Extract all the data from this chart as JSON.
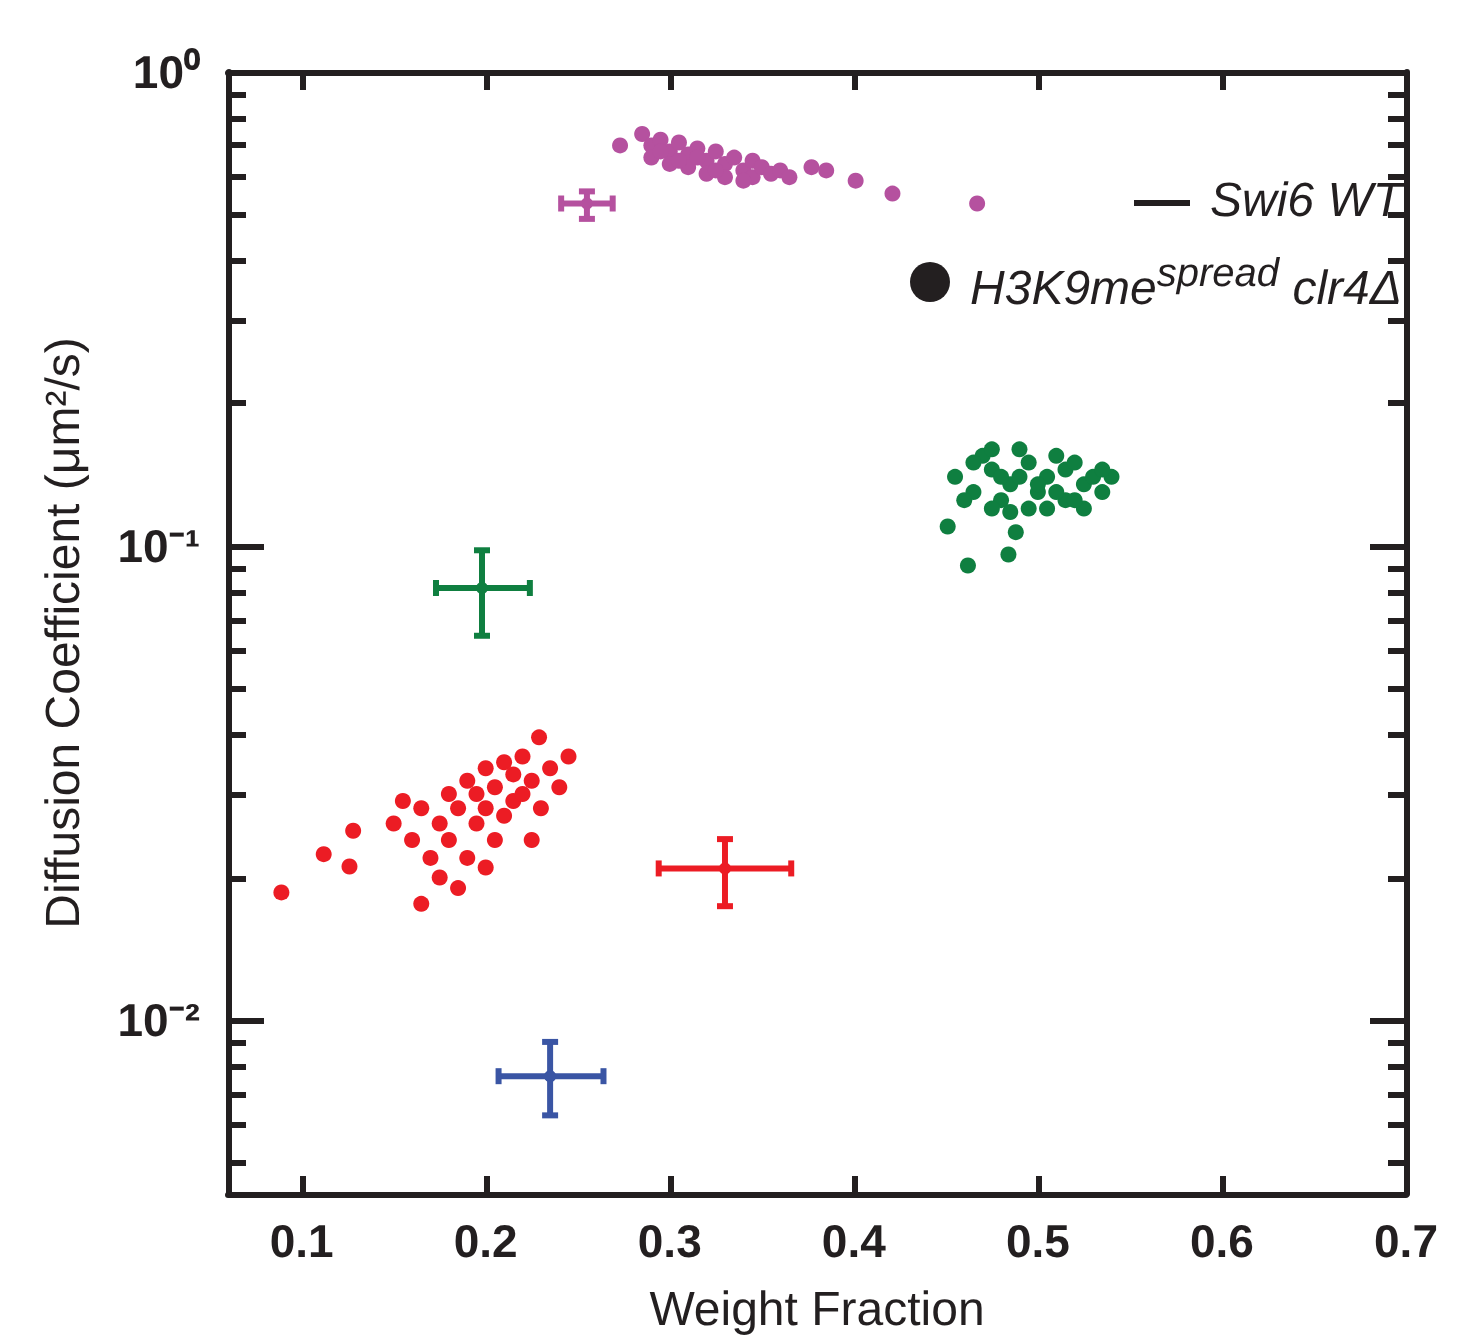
{
  "chart_data": {
    "type": "scatter",
    "xlabel": "Weight Fraction",
    "ylabel": "Diffusion Coefficient (μm²/s)",
    "xlim": [
      0.06,
      0.7
    ],
    "xticks": [
      0.1,
      0.2,
      0.3,
      0.4,
      0.5,
      0.6,
      0.7
    ],
    "ylim": [
      0.0043,
      1
    ],
    "log": "y",
    "yticks": [
      {
        "value": 1,
        "label": "10⁰"
      },
      {
        "value": 0.1,
        "label": "10⁻¹"
      },
      {
        "value": 0.01,
        "label": "10⁻²"
      },
      {
        "value": 0.005,
        "label": null
      },
      {
        "value": 0.006,
        "label": null
      },
      {
        "value": 0.007,
        "label": null
      },
      {
        "value": 0.008,
        "label": null
      },
      {
        "value": 0.009,
        "label": null
      },
      {
        "value": 0.02,
        "label": null
      },
      {
        "value": 0.03,
        "label": null
      },
      {
        "value": 0.04,
        "label": null
      },
      {
        "value": 0.05,
        "label": null
      },
      {
        "value": 0.06,
        "label": null
      },
      {
        "value": 0.07,
        "label": null
      },
      {
        "value": 0.08,
        "label": null
      },
      {
        "value": 0.09,
        "label": null
      },
      {
        "value": 0.2,
        "label": null
      },
      {
        "value": 0.3,
        "label": null
      },
      {
        "value": 0.4,
        "label": null
      },
      {
        "value": 0.5,
        "label": null
      },
      {
        "value": 0.6,
        "label": null
      },
      {
        "value": 0.7,
        "label": null
      },
      {
        "value": 0.8,
        "label": null
      },
      {
        "value": 0.9,
        "label": null
      }
    ],
    "grid": false,
    "annotations": [
      "Swi6 WT",
      "H3K9me$^{spread}$ clr4Δ"
    ],
    "series": [
      {
        "marker": "circle",
        "colors": [
          "#b5519f",
          "#0f7f40",
          "#ec1c24",
          "#3a55a4"
        ],
        "x": [
          0.255,
          0.198,
          0.33,
          0.235
        ],
        "values": [
          0.528,
          0.0816,
          0.0209,
          0.00762
        ],
        "errors": [
          [
            0.49,
            0.56
          ],
          [
            0.0647,
            0.098
          ],
          [
            0.0174,
            0.0241
          ],
          [
            0.0063,
            0.009
          ]
        ],
        "xerrors": [
          [
            0.241,
            0.269
          ],
          [
            0.173,
            0.224
          ],
          [
            0.294,
            0.366
          ],
          [
            0.207,
            0.264
          ]
        ]
      },
      {
        "marker": "circle",
        "colors": [
          "#b5519f",
          "#b5519f",
          "#b5519f",
          "#b5519f",
          "#b5519f",
          "#b5519f",
          "#b5519f",
          "#b5519f",
          "#b5519f",
          "#b5519f",
          "#b5519f",
          "#b5519f",
          "#b5519f",
          "#b5519f",
          "#b5519f",
          "#b5519f",
          "#b5519f",
          "#b5519f",
          "#b5519f",
          "#b5519f",
          "#b5519f",
          "#b5519f",
          "#b5519f",
          "#b5519f",
          "#b5519f",
          "#b5519f",
          "#b5519f",
          "#b5519f",
          "#b5519f",
          "#b5519f",
          "#b5519f",
          "#b5519f",
          "#b5519f",
          "#b5519f",
          "#0f7f40",
          "#0f7f40",
          "#0f7f40",
          "#0f7f40",
          "#0f7f40",
          "#0f7f40",
          "#0f7f40",
          "#0f7f40",
          "#0f7f40",
          "#0f7f40",
          "#0f7f40",
          "#0f7f40",
          "#0f7f40",
          "#0f7f40",
          "#0f7f40",
          "#0f7f40",
          "#0f7f40",
          "#0f7f40",
          "#0f7f40",
          "#0f7f40",
          "#0f7f40",
          "#0f7f40",
          "#0f7f40",
          "#0f7f40",
          "#0f7f40",
          "#0f7f40",
          "#0f7f40",
          "#0f7f40",
          "#0f7f40",
          "#0f7f40",
          "#0f7f40",
          "#0f7f40",
          "#0f7f40",
          "#0f7f40",
          "#0f7f40",
          "#0f7f40",
          "#ec1c24",
          "#ec1c24",
          "#ec1c24",
          "#ec1c24",
          "#ec1c24",
          "#ec1c24",
          "#ec1c24",
          "#ec1c24",
          "#ec1c24",
          "#ec1c24",
          "#ec1c24",
          "#ec1c24",
          "#ec1c24",
          "#ec1c24",
          "#ec1c24",
          "#ec1c24",
          "#ec1c24",
          "#ec1c24",
          "#ec1c24",
          "#ec1c24",
          "#ec1c24",
          "#ec1c24",
          "#ec1c24",
          "#ec1c24",
          "#ec1c24",
          "#ec1c24",
          "#ec1c24",
          "#ec1c24",
          "#ec1c24",
          "#ec1c24",
          "#ec1c24",
          "#ec1c24",
          "#ec1c24",
          "#ec1c24",
          "#ec1c24",
          "#ec1c24",
          "#ec1c24",
          "#ec1c24"
        ],
        "x": [
          0.285,
          0.29,
          0.29,
          0.295,
          0.3,
          0.3,
          0.305,
          0.31,
          0.31,
          0.315,
          0.32,
          0.32,
          0.325,
          0.33,
          0.33,
          0.335,
          0.34,
          0.345,
          0.345,
          0.35,
          0.355,
          0.36,
          0.365,
          0.34,
          0.325,
          0.305,
          0.295,
          0.315,
          0.273,
          0.377,
          0.385,
          0.401,
          0.421,
          0.467,
          0.455,
          0.465,
          0.475,
          0.485,
          0.495,
          0.505,
          0.515,
          0.525,
          0.535,
          0.46,
          0.47,
          0.48,
          0.49,
          0.5,
          0.51,
          0.52,
          0.53,
          0.54,
          0.465,
          0.475,
          0.485,
          0.495,
          0.505,
          0.515,
          0.525,
          0.49,
          0.5,
          0.51,
          0.48,
          0.451,
          0.462,
          0.484,
          0.488,
          0.475,
          0.52,
          0.535,
          0.089,
          0.112,
          0.126,
          0.128,
          0.165,
          0.229,
          0.16,
          0.165,
          0.17,
          0.175,
          0.18,
          0.18,
          0.185,
          0.19,
          0.19,
          0.195,
          0.195,
          0.2,
          0.2,
          0.205,
          0.205,
          0.21,
          0.21,
          0.215,
          0.215,
          0.22,
          0.22,
          0.225,
          0.23,
          0.235,
          0.24,
          0.245,
          0.175,
          0.185,
          0.2,
          0.225,
          0.15,
          0.155
        ],
        "values": [
          0.74,
          0.7,
          0.66,
          0.72,
          0.68,
          0.64,
          0.71,
          0.67,
          0.63,
          0.69,
          0.65,
          0.61,
          0.68,
          0.64,
          0.6,
          0.66,
          0.62,
          0.65,
          0.6,
          0.63,
          0.61,
          0.62,
          0.6,
          0.59,
          0.62,
          0.65,
          0.68,
          0.66,
          0.7,
          0.63,
          0.62,
          0.59,
          0.554,
          0.528,
          0.14,
          0.13,
          0.145,
          0.135,
          0.15,
          0.14,
          0.145,
          0.135,
          0.13,
          0.125,
          0.155,
          0.125,
          0.16,
          0.13,
          0.155,
          0.15,
          0.14,
          0.14,
          0.15,
          0.12,
          0.118,
          0.12,
          0.12,
          0.125,
          0.12,
          0.14,
          0.135,
          0.13,
          0.14,
          0.11,
          0.091,
          0.096,
          0.107,
          0.16,
          0.125,
          0.145,
          0.0186,
          0.0224,
          0.0211,
          0.0251,
          0.0176,
          0.0395,
          0.024,
          0.028,
          0.022,
          0.026,
          0.03,
          0.024,
          0.028,
          0.032,
          0.022,
          0.026,
          0.03,
          0.028,
          0.034,
          0.024,
          0.031,
          0.027,
          0.035,
          0.029,
          0.033,
          0.03,
          0.036,
          0.032,
          0.028,
          0.034,
          0.031,
          0.036,
          0.02,
          0.019,
          0.021,
          0.024,
          0.026,
          0.029
        ]
      }
    ]
  }
}
